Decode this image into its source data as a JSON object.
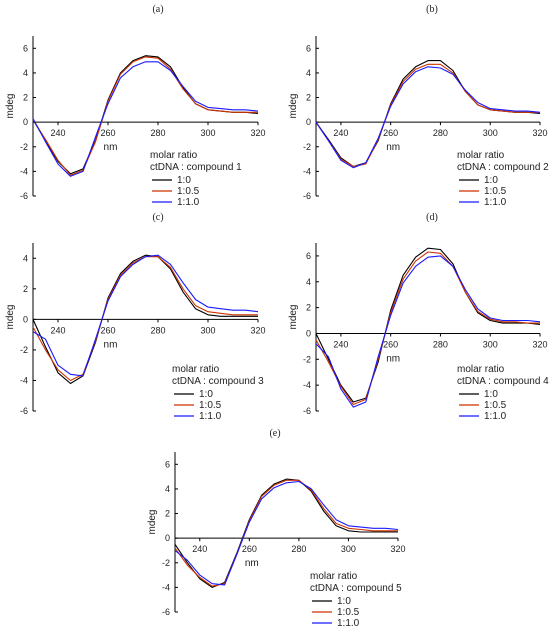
{
  "figure": {
    "colors": {
      "series_1": "#000000",
      "series_2": "#cc3300",
      "series_3": "#1a1aff"
    }
  },
  "chart_data": [
    {
      "type": "line",
      "panel_label": "(a)",
      "xlabel": "nm",
      "ylabel": "mdeg",
      "xlim": [
        230,
        320
      ],
      "ylim": [
        -6,
        7
      ],
      "xticks": [
        240,
        260,
        280,
        300,
        320
      ],
      "yticks": [
        -6,
        -4,
        -2,
        0,
        2,
        4,
        6
      ],
      "legend": {
        "placement": "bottom-right",
        "title_lines": [
          "molar ratio",
          "ctDNA : compound 1"
        ]
      },
      "series": [
        {
          "name": "1:0",
          "color": "#000000",
          "x": [
            230,
            235,
            240,
            245,
            250,
            255,
            260,
            265,
            270,
            275,
            280,
            285,
            290,
            295,
            300,
            305,
            310,
            315,
            320
          ],
          "y": [
            0.2,
            -1.5,
            -3.2,
            -4.2,
            -3.8,
            -1.5,
            1.8,
            4.0,
            5.0,
            5.4,
            5.3,
            4.5,
            2.8,
            1.5,
            1.0,
            0.9,
            0.8,
            0.8,
            0.7
          ]
        },
        {
          "name": "1:0.5",
          "color": "#cc3300",
          "x": [
            230,
            235,
            240,
            245,
            250,
            255,
            260,
            265,
            270,
            275,
            280,
            285,
            290,
            295,
            300,
            305,
            310,
            315,
            320
          ],
          "y": [
            0.2,
            -1.4,
            -3.1,
            -4.3,
            -3.9,
            -1.6,
            1.7,
            3.9,
            4.9,
            5.3,
            5.2,
            4.3,
            2.7,
            1.5,
            1.0,
            0.9,
            0.8,
            0.8,
            0.8
          ]
        },
        {
          "name": "1:1.0",
          "color": "#1a1aff",
          "x": [
            230,
            235,
            240,
            245,
            250,
            255,
            260,
            265,
            270,
            275,
            280,
            285,
            290,
            295,
            300,
            305,
            310,
            315,
            320
          ],
          "y": [
            0.3,
            -1.6,
            -3.4,
            -4.4,
            -4.0,
            -1.2,
            1.5,
            3.6,
            4.5,
            4.9,
            4.9,
            4.2,
            2.9,
            1.7,
            1.2,
            1.1,
            1.0,
            1.0,
            0.9
          ]
        }
      ]
    },
    {
      "type": "line",
      "panel_label": "(b)",
      "xlabel": "nm",
      "ylabel": "mdeg",
      "xlim": [
        230,
        320
      ],
      "ylim": [
        -6,
        7
      ],
      "xticks": [
        240,
        260,
        280,
        300,
        320
      ],
      "yticks": [
        -6,
        -4,
        -2,
        0,
        2,
        4,
        6
      ],
      "legend": {
        "placement": "bottom-right",
        "title_lines": [
          "molar ratio",
          "ctDNA : compound 2"
        ]
      },
      "series": [
        {
          "name": "1:0",
          "color": "#000000",
          "x": [
            230,
            235,
            240,
            245,
            250,
            255,
            260,
            265,
            270,
            275,
            280,
            285,
            290,
            295,
            300,
            305,
            310,
            315,
            320
          ],
          "y": [
            0.0,
            -1.4,
            -2.9,
            -3.6,
            -3.3,
            -1.5,
            1.5,
            3.5,
            4.5,
            5.0,
            5.0,
            4.2,
            2.5,
            1.4,
            1.0,
            0.9,
            0.8,
            0.8,
            0.7
          ]
        },
        {
          "name": "1:0.5",
          "color": "#cc3300",
          "x": [
            230,
            235,
            240,
            245,
            250,
            255,
            260,
            265,
            270,
            275,
            280,
            285,
            290,
            295,
            300,
            305,
            310,
            315,
            320
          ],
          "y": [
            0.0,
            -1.5,
            -3.0,
            -3.6,
            -3.4,
            -1.4,
            1.4,
            3.3,
            4.3,
            4.7,
            4.7,
            4.0,
            2.5,
            1.4,
            1.0,
            0.9,
            0.8,
            0.8,
            0.8
          ]
        },
        {
          "name": "1:1.0",
          "color": "#1a1aff",
          "x": [
            230,
            235,
            240,
            245,
            250,
            255,
            260,
            265,
            270,
            275,
            280,
            285,
            290,
            295,
            300,
            305,
            310,
            315,
            320
          ],
          "y": [
            0.0,
            -1.5,
            -3.1,
            -3.7,
            -3.3,
            -1.3,
            1.3,
            3.1,
            4.1,
            4.5,
            4.4,
            3.9,
            2.6,
            1.6,
            1.1,
            1.0,
            0.9,
            0.9,
            0.8
          ]
        }
      ]
    },
    {
      "type": "line",
      "panel_label": "(c)",
      "xlabel": "nm",
      "ylabel": "mdeg",
      "xlim": [
        230,
        320
      ],
      "ylim": [
        -6,
        5
      ],
      "xticks": [
        240,
        260,
        280,
        300,
        320
      ],
      "yticks": [
        -6,
        -4,
        -2,
        0,
        2,
        4
      ],
      "legend": {
        "placement": "bottom-right",
        "title_lines": [
          "molar ratio",
          "ctDNA : compound 3"
        ]
      },
      "series": [
        {
          "name": "1:0",
          "color": "#000000",
          "x": [
            230,
            235,
            240,
            245,
            250,
            255,
            260,
            265,
            270,
            275,
            280,
            285,
            290,
            295,
            300,
            305,
            310,
            315,
            320
          ],
          "y": [
            0.0,
            -1.8,
            -3.5,
            -4.2,
            -3.7,
            -1.5,
            1.4,
            3.0,
            3.8,
            4.2,
            4.1,
            3.3,
            1.8,
            0.7,
            0.3,
            0.2,
            0.2,
            0.2,
            0.2
          ]
        },
        {
          "name": "1:0.5",
          "color": "#cc3300",
          "x": [
            230,
            235,
            240,
            245,
            250,
            255,
            260,
            265,
            270,
            275,
            280,
            285,
            290,
            295,
            300,
            305,
            310,
            315,
            320
          ],
          "y": [
            -0.5,
            -2.0,
            -3.3,
            -4.0,
            -3.6,
            -1.4,
            1.3,
            2.9,
            3.7,
            4.1,
            4.1,
            3.4,
            2.0,
            0.9,
            0.5,
            0.4,
            0.3,
            0.3,
            0.3
          ]
        },
        {
          "name": "1:1.0",
          "color": "#1a1aff",
          "x": [
            230,
            235,
            240,
            245,
            250,
            255,
            260,
            265,
            270,
            275,
            280,
            285,
            290,
            295,
            300,
            305,
            310,
            315,
            320
          ],
          "y": [
            -0.8,
            -1.3,
            -3.0,
            -3.6,
            -3.7,
            -1.3,
            1.2,
            2.8,
            3.6,
            4.1,
            4.2,
            3.6,
            2.4,
            1.3,
            0.8,
            0.7,
            0.6,
            0.6,
            0.5
          ]
        }
      ]
    },
    {
      "type": "line",
      "panel_label": "(d)",
      "xlabel": "nm",
      "ylabel": "mdeg",
      "xlim": [
        230,
        320
      ],
      "ylim": [
        -6,
        7
      ],
      "xticks": [
        240,
        260,
        280,
        300,
        320
      ],
      "yticks": [
        -6,
        -4,
        -2,
        0,
        2,
        4,
        6
      ],
      "legend": {
        "placement": "bottom-right",
        "title_lines": [
          "molar ratio",
          "ctDNA : compound 4"
        ]
      },
      "series": [
        {
          "name": "1:0",
          "color": "#000000",
          "x": [
            230,
            235,
            240,
            245,
            250,
            255,
            260,
            265,
            270,
            275,
            280,
            285,
            290,
            295,
            300,
            305,
            310,
            315,
            320
          ],
          "y": [
            0.0,
            -2.0,
            -4.0,
            -5.3,
            -5.0,
            -2.2,
            1.8,
            4.5,
            5.9,
            6.6,
            6.5,
            5.4,
            3.2,
            1.6,
            1.0,
            0.8,
            0.8,
            0.8,
            0.7
          ]
        },
        {
          "name": "1:0.5",
          "color": "#cc3300",
          "x": [
            230,
            235,
            240,
            245,
            250,
            255,
            260,
            265,
            270,
            275,
            280,
            285,
            290,
            295,
            300,
            305,
            310,
            315,
            320
          ],
          "y": [
            -0.5,
            -2.2,
            -4.1,
            -5.5,
            -5.1,
            -2.0,
            1.6,
            4.2,
            5.6,
            6.3,
            6.2,
            5.2,
            3.2,
            1.7,
            1.1,
            0.9,
            0.9,
            0.8,
            0.8
          ]
        },
        {
          "name": "1:1.0",
          "color": "#1a1aff",
          "x": [
            230,
            235,
            240,
            245,
            250,
            255,
            260,
            265,
            270,
            275,
            280,
            285,
            290,
            295,
            300,
            305,
            310,
            315,
            320
          ],
          "y": [
            -0.8,
            -1.8,
            -4.3,
            -5.7,
            -5.3,
            -1.8,
            1.4,
            3.9,
            5.2,
            5.9,
            6.0,
            5.2,
            3.4,
            1.9,
            1.2,
            1.0,
            1.0,
            1.0,
            0.9
          ]
        }
      ]
    },
    {
      "type": "line",
      "panel_label": "(e)",
      "xlabel": "nm",
      "ylabel": "mdeg",
      "xlim": [
        230,
        320
      ],
      "ylim": [
        -6,
        7
      ],
      "xticks": [
        240,
        260,
        280,
        300,
        320
      ],
      "yticks": [
        -6,
        -4,
        -2,
        0,
        2,
        4,
        6
      ],
      "legend": {
        "placement": "bottom-right",
        "title_lines": [
          "molar ratio",
          "ctDNA : compound 5"
        ]
      },
      "series": [
        {
          "name": "1:0",
          "color": "#000000",
          "x": [
            230,
            235,
            240,
            245,
            250,
            255,
            260,
            265,
            270,
            275,
            280,
            285,
            290,
            295,
            300,
            305,
            310,
            315,
            320
          ],
          "y": [
            -0.5,
            -2.0,
            -3.3,
            -4.0,
            -3.6,
            -1.2,
            1.5,
            3.5,
            4.4,
            4.8,
            4.7,
            3.8,
            2.2,
            1.0,
            0.6,
            0.5,
            0.5,
            0.5,
            0.5
          ]
        },
        {
          "name": "1:0.5",
          "color": "#cc3300",
          "x": [
            230,
            235,
            240,
            245,
            250,
            255,
            260,
            265,
            270,
            275,
            280,
            285,
            290,
            295,
            300,
            305,
            310,
            315,
            320
          ],
          "y": [
            -0.8,
            -2.2,
            -3.2,
            -3.9,
            -3.7,
            -1.3,
            1.4,
            3.4,
            4.3,
            4.7,
            4.7,
            3.9,
            2.4,
            1.2,
            0.8,
            0.7,
            0.6,
            0.6,
            0.6
          ]
        },
        {
          "name": "1:1.0",
          "color": "#1a1aff",
          "x": [
            230,
            235,
            240,
            245,
            250,
            255,
            260,
            265,
            270,
            275,
            280,
            285,
            290,
            295,
            300,
            305,
            310,
            315,
            320
          ],
          "y": [
            -1.0,
            -1.8,
            -3.0,
            -3.7,
            -3.8,
            -1.3,
            1.3,
            3.2,
            4.1,
            4.5,
            4.6,
            4.0,
            2.7,
            1.5,
            1.0,
            0.9,
            0.8,
            0.8,
            0.7
          ]
        }
      ]
    }
  ]
}
